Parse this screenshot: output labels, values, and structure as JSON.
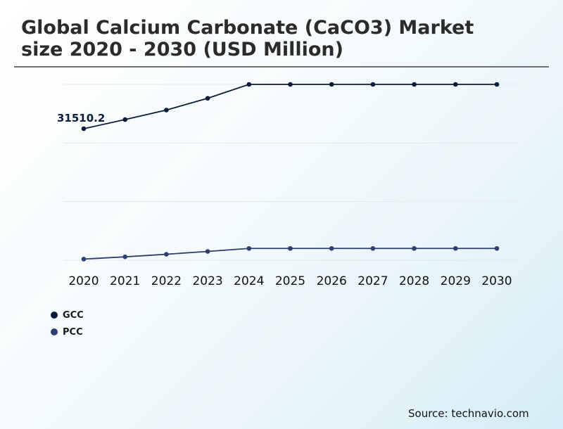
{
  "title_line1": "Global Calcium Carbonate (CaCO3) Market",
  "title_line2": "size 2020 - 2030 (USD Million)",
  "source": "Source: technavio.com",
  "colors": {
    "GCC": "#0b1c3d",
    "PCC": "#2f3f6e",
    "grid": "#e3e8ec"
  },
  "chart_data": {
    "type": "line",
    "x": [
      "2020",
      "2021",
      "2022",
      "2023",
      "2024",
      "2025",
      "2026",
      "2027",
      "2028",
      "2029",
      "2030"
    ],
    "series": [
      {
        "name": "GCC",
        "values": [
          31510.2,
          33120,
          34800,
          36880,
          39330,
          39330,
          39330,
          39330,
          39330,
          39330,
          39330
        ]
      },
      {
        "name": "PCC",
        "values": [
          8500,
          8900,
          9350,
          9850,
          10380,
          10380,
          10380,
          10380,
          10380,
          10380,
          10380
        ]
      }
    ],
    "annotations": [
      {
        "series": "GCC",
        "index": 0,
        "text": "31510.2"
      }
    ],
    "ylim": [
      8300,
      39330
    ],
    "grid": true,
    "legend": "bottom-left"
  }
}
